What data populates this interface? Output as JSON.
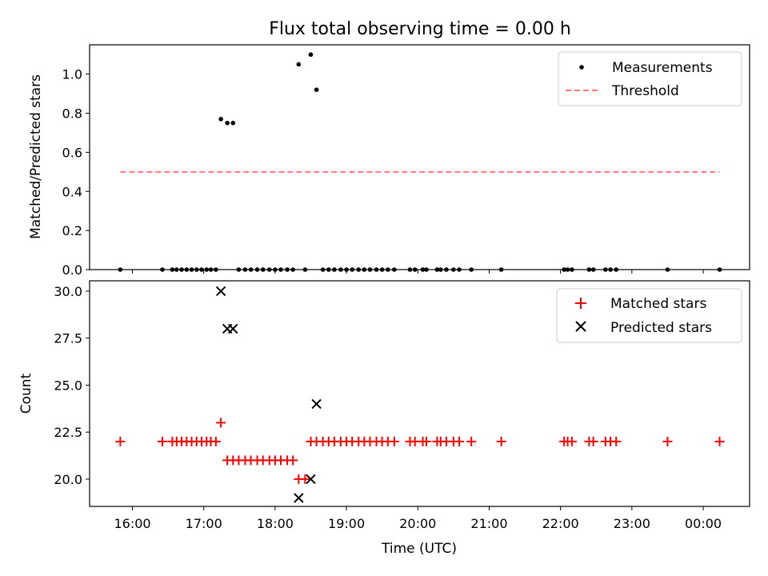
{
  "chart_data": [
    {
      "type": "scatter",
      "title": "Flux total observing time = 0.00 h",
      "xlabel": "",
      "ylabel": "Matched/Predicted stars",
      "xlim": [
        15.4,
        24.65
      ],
      "ylim": [
        0.0,
        1.15
      ],
      "y_ticks": [
        0.0,
        0.2,
        0.4,
        0.6,
        0.8,
        1.0
      ],
      "y_tick_labels": [
        "0.0",
        "0.2",
        "0.4",
        "0.6",
        "0.8",
        "1.0"
      ],
      "legend_position": "top-right",
      "series": [
        {
          "name": "Measurements",
          "marker": "dot",
          "color": "#000000",
          "x": [
            15.83,
            16.42,
            16.56,
            16.62,
            16.69,
            16.76,
            16.83,
            16.9,
            16.97,
            17.04,
            17.1,
            17.17,
            17.24,
            17.33,
            17.41,
            17.49,
            17.58,
            17.66,
            17.75,
            17.83,
            17.92,
            18.0,
            18.08,
            18.17,
            18.25,
            18.33,
            18.42,
            18.5,
            18.58,
            18.67,
            18.75,
            18.83,
            18.92,
            19.0,
            19.08,
            19.17,
            19.25,
            19.33,
            19.42,
            19.5,
            19.58,
            19.67,
            19.89,
            19.96,
            20.07,
            20.12,
            20.27,
            20.32,
            20.4,
            20.5,
            20.58,
            20.75,
            21.17,
            22.05,
            22.1,
            22.16,
            22.4,
            22.46,
            22.63,
            22.7,
            22.78,
            23.5,
            24.23
          ],
          "y": [
            0,
            0,
            0,
            0,
            0,
            0,
            0,
            0,
            0,
            0,
            0,
            0,
            0.77,
            0.75,
            0.75,
            0,
            0,
            0,
            0,
            0,
            0,
            0,
            0,
            0,
            0,
            1.05,
            0,
            1.1,
            0.92,
            0,
            0,
            0,
            0,
            0,
            0,
            0,
            0,
            0,
            0,
            0,
            0,
            0,
            0,
            0,
            0,
            0,
            0,
            0,
            0,
            0,
            0,
            0,
            0,
            0,
            0,
            0,
            0,
            0,
            0,
            0,
            0,
            0,
            0
          ]
        },
        {
          "name": "Threshold",
          "style": "dashed",
          "color": "#ff7777",
          "x": [
            15.83,
            24.23
          ],
          "y": [
            0.5,
            0.5
          ]
        }
      ]
    },
    {
      "type": "scatter",
      "title": "",
      "xlabel": "Time (UTC)",
      "ylabel": "Count",
      "xlim": [
        15.4,
        24.65
      ],
      "ylim": [
        18.55,
        30.55
      ],
      "y_ticks": [
        20.0,
        22.5,
        25.0,
        27.5,
        30.0
      ],
      "y_tick_labels": [
        "20.0",
        "22.5",
        "25.0",
        "27.5",
        "30.0"
      ],
      "x_ticks": [
        16,
        17,
        18,
        19,
        20,
        21,
        22,
        23,
        24
      ],
      "x_tick_labels": [
        "16:00",
        "17:00",
        "18:00",
        "19:00",
        "20:00",
        "21:00",
        "22:00",
        "23:00",
        "00:00"
      ],
      "legend_position": "top-right",
      "series": [
        {
          "name": "Matched stars",
          "marker": "plus",
          "color": "#ff0000",
          "x": [
            15.83,
            16.42,
            16.56,
            16.62,
            16.69,
            16.76,
            16.83,
            16.9,
            16.97,
            17.04,
            17.1,
            17.17,
            17.24,
            17.33,
            17.41,
            17.49,
            17.58,
            17.66,
            17.75,
            17.83,
            17.92,
            18.0,
            18.08,
            18.17,
            18.25,
            18.33,
            18.42,
            18.5,
            18.58,
            18.67,
            18.75,
            18.83,
            18.92,
            19.0,
            19.08,
            19.17,
            19.25,
            19.33,
            19.42,
            19.5,
            19.58,
            19.67,
            19.89,
            19.96,
            20.07,
            20.12,
            20.27,
            20.32,
            20.4,
            20.5,
            20.58,
            20.75,
            21.17,
            22.05,
            22.1,
            22.16,
            22.4,
            22.46,
            22.63,
            22.7,
            22.78,
            23.5,
            24.23
          ],
          "y": [
            22,
            22,
            22,
            22,
            22,
            22,
            22,
            22,
            22,
            22,
            22,
            22,
            23,
            21,
            21,
            21,
            21,
            21,
            21,
            21,
            21,
            21,
            21,
            21,
            21,
            20,
            20,
            22,
            22,
            22,
            22,
            22,
            22,
            22,
            22,
            22,
            22,
            22,
            22,
            22,
            22,
            22,
            22,
            22,
            22,
            22,
            22,
            22,
            22,
            22,
            22,
            22,
            22,
            22,
            22,
            22,
            22,
            22,
            22,
            22,
            22,
            22,
            22
          ]
        },
        {
          "name": "Predicted stars",
          "marker": "x",
          "color": "#000000",
          "x": [
            17.24,
            17.33,
            17.41,
            18.33,
            18.5,
            18.58
          ],
          "y": [
            30,
            28,
            28,
            19,
            20,
            24
          ]
        }
      ]
    }
  ]
}
